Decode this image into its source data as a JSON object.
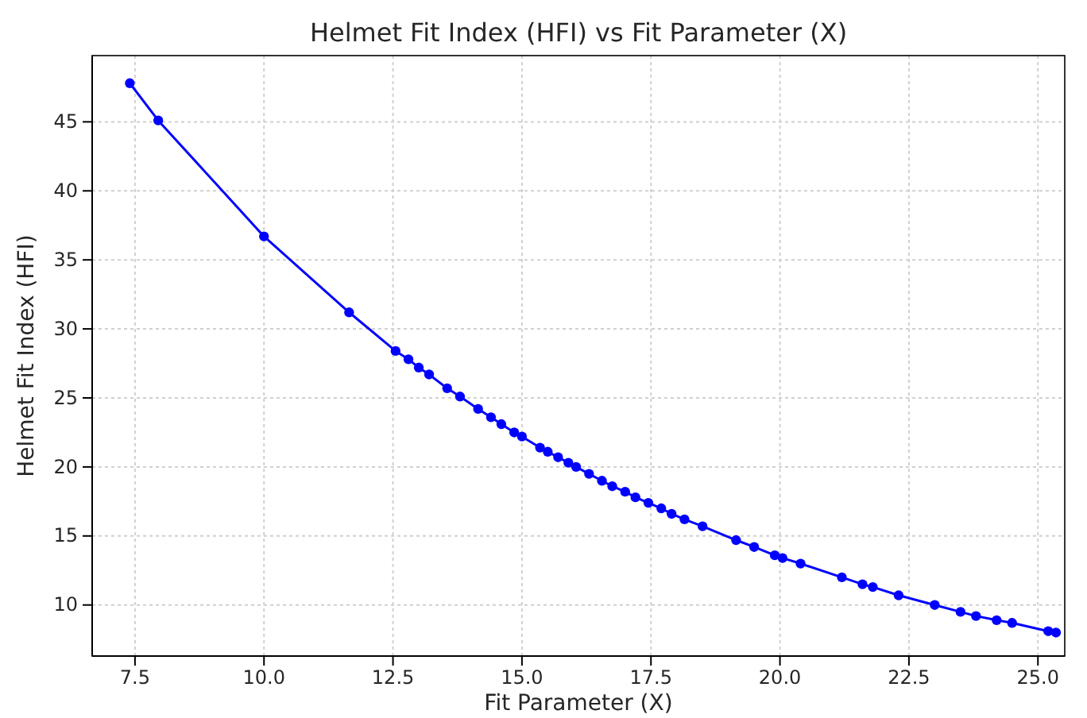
{
  "chart_data": {
    "type": "line",
    "title": "Helmet Fit Index (HFI) vs Fit Parameter (X)",
    "xlabel": "Fit Parameter (X)",
    "ylabel": "Helmet Fit Index (HFI)",
    "x": [
      7.4,
      7.95,
      10.0,
      11.65,
      12.55,
      12.8,
      13.0,
      13.2,
      13.55,
      13.8,
      14.15,
      14.4,
      14.6,
      14.85,
      15.0,
      15.35,
      15.5,
      15.7,
      15.9,
      16.05,
      16.3,
      16.55,
      16.75,
      17.0,
      17.2,
      17.45,
      17.7,
      17.9,
      18.15,
      18.5,
      19.15,
      19.5,
      19.9,
      20.05,
      20.4,
      21.2,
      21.6,
      21.8,
      22.3,
      23.0,
      23.5,
      23.8,
      24.2,
      24.5,
      25.2,
      25.35
    ],
    "series": [
      {
        "color": "#0000ff",
        "values": [
          47.8,
          45.1,
          36.7,
          31.2,
          28.4,
          27.8,
          27.2,
          26.7,
          25.7,
          25.1,
          24.2,
          23.6,
          23.1,
          22.5,
          22.2,
          21.4,
          21.1,
          20.7,
          20.3,
          20.0,
          19.5,
          19.0,
          18.6,
          18.2,
          17.8,
          17.4,
          17.0,
          16.6,
          16.2,
          15.7,
          14.7,
          14.2,
          13.6,
          13.4,
          13.0,
          12.0,
          11.5,
          11.3,
          10.7,
          10.0,
          9.5,
          9.2,
          8.9,
          8.7,
          8.1,
          8.0
        ]
      }
    ],
    "xlim": [
      6.67,
      25.52
    ],
    "ylim": [
      6.3,
      49.8
    ],
    "xticks": [
      {
        "value": 7.5,
        "label": "7.5"
      },
      {
        "value": 10,
        "label": "10.0"
      },
      {
        "value": 12.5,
        "label": "12.5"
      },
      {
        "value": 15,
        "label": "15.0"
      },
      {
        "value": 17.5,
        "label": "17.5"
      },
      {
        "value": 20,
        "label": "20.0"
      },
      {
        "value": 22.5,
        "label": "22.5"
      },
      {
        "value": 25,
        "label": "25.0"
      }
    ],
    "yticks": [
      10,
      15,
      20,
      25,
      30,
      35,
      40,
      45
    ],
    "grid": true,
    "marker": "circle",
    "line_style": "solid"
  }
}
